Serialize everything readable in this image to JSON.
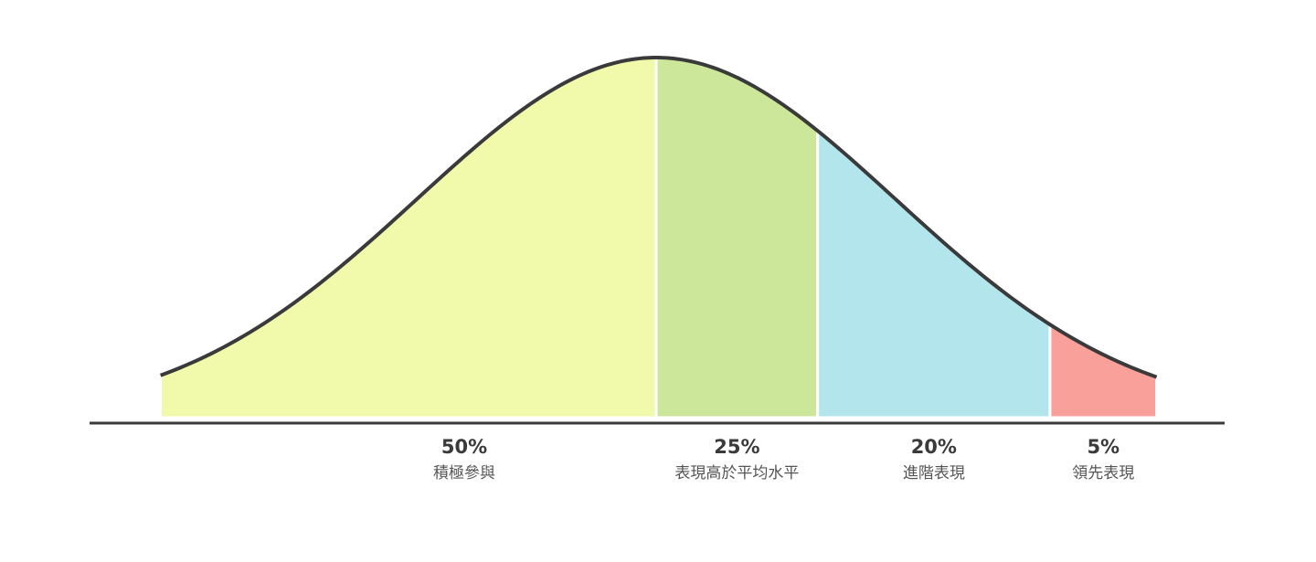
{
  "chart_data": {
    "type": "bell",
    "categories": [
      "積極參與",
      "表現高於平均水平",
      "進階表現",
      "領先表現"
    ],
    "values": [
      50,
      25,
      20,
      5
    ],
    "value_labels": [
      "50%",
      "25%",
      "20%",
      "5%"
    ],
    "colors": [
      "#f1f9ab",
      "#cde79a",
      "#b3e5ed",
      "#f9a09a"
    ]
  }
}
